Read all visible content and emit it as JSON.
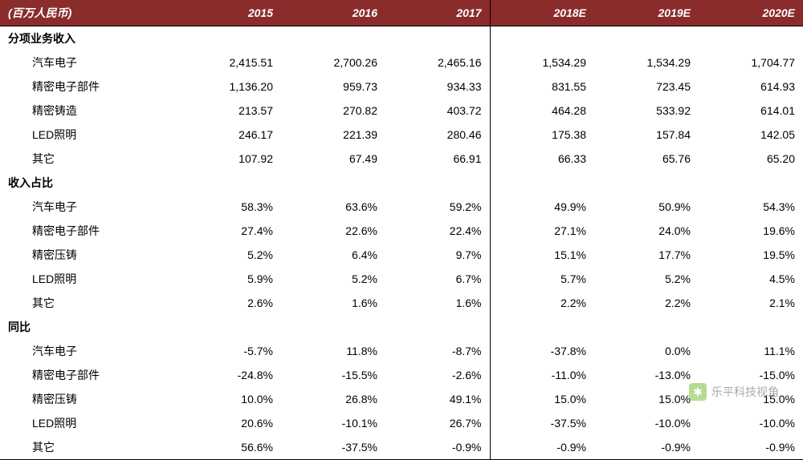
{
  "header": {
    "label": "(百万人民币)",
    "years": [
      "2015",
      "2016",
      "2017",
      "2018E",
      "2019E",
      "2020E"
    ]
  },
  "sections": [
    {
      "title": "分项业务收入",
      "rows": [
        {
          "label": "汽车电子",
          "values": [
            "2,415.51",
            "2,700.26",
            "2,465.16",
            "1,534.29",
            "1,534.29",
            "1,704.77"
          ]
        },
        {
          "label": "精密电子部件",
          "values": [
            "1,136.20",
            "959.73",
            "934.33",
            "831.55",
            "723.45",
            "614.93"
          ]
        },
        {
          "label": "精密铸造",
          "values": [
            "213.57",
            "270.82",
            "403.72",
            "464.28",
            "533.92",
            "614.01"
          ]
        },
        {
          "label": "LED照明",
          "values": [
            "246.17",
            "221.39",
            "280.46",
            "175.38",
            "157.84",
            "142.05"
          ]
        },
        {
          "label": "其它",
          "values": [
            "107.92",
            "67.49",
            "66.91",
            "66.33",
            "65.76",
            "65.20"
          ]
        }
      ]
    },
    {
      "title": "收入占比",
      "rows": [
        {
          "label": "汽车电子",
          "values": [
            "58.3%",
            "63.6%",
            "59.2%",
            "49.9%",
            "50.9%",
            "54.3%"
          ]
        },
        {
          "label": "精密电子部件",
          "values": [
            "27.4%",
            "22.6%",
            "22.4%",
            "27.1%",
            "24.0%",
            "19.6%"
          ]
        },
        {
          "label": "精密压铸",
          "values": [
            "5.2%",
            "6.4%",
            "9.7%",
            "15.1%",
            "17.7%",
            "19.5%"
          ]
        },
        {
          "label": "LED照明",
          "values": [
            "5.9%",
            "5.2%",
            "6.7%",
            "5.7%",
            "5.2%",
            "4.5%"
          ]
        },
        {
          "label": "其它",
          "values": [
            "2.6%",
            "1.6%",
            "1.6%",
            "2.2%",
            "2.2%",
            "2.1%"
          ]
        }
      ]
    },
    {
      "title": "同比",
      "rows": [
        {
          "label": "汽车电子",
          "values": [
            "-5.7%",
            "11.8%",
            "-8.7%",
            "-37.8%",
            "0.0%",
            "11.1%"
          ]
        },
        {
          "label": "精密电子部件",
          "values": [
            "-24.8%",
            "-15.5%",
            "-2.6%",
            "-11.0%",
            "-13.0%",
            "-15.0%"
          ]
        },
        {
          "label": "精密压铸",
          "values": [
            "10.0%",
            "26.8%",
            "49.1%",
            "15.0%",
            "15.0%",
            "15.0%"
          ]
        },
        {
          "label": "LED照明",
          "values": [
            "20.6%",
            "-10.1%",
            "26.7%",
            "-37.5%",
            "-10.0%",
            "-10.0%"
          ]
        },
        {
          "label": "其它",
          "values": [
            "56.6%",
            "-37.5%",
            "-0.9%",
            "-0.9%",
            "-0.9%",
            "-0.9%"
          ]
        }
      ]
    }
  ],
  "watermark": {
    "text": "乐平科技视角"
  },
  "style": {
    "header_bg": "#8b2c2c",
    "header_fg": "#ffffff",
    "row_fg": "#000000",
    "font_size_header": 14,
    "font_size_body": 14,
    "divider_after_col_index": 3
  }
}
